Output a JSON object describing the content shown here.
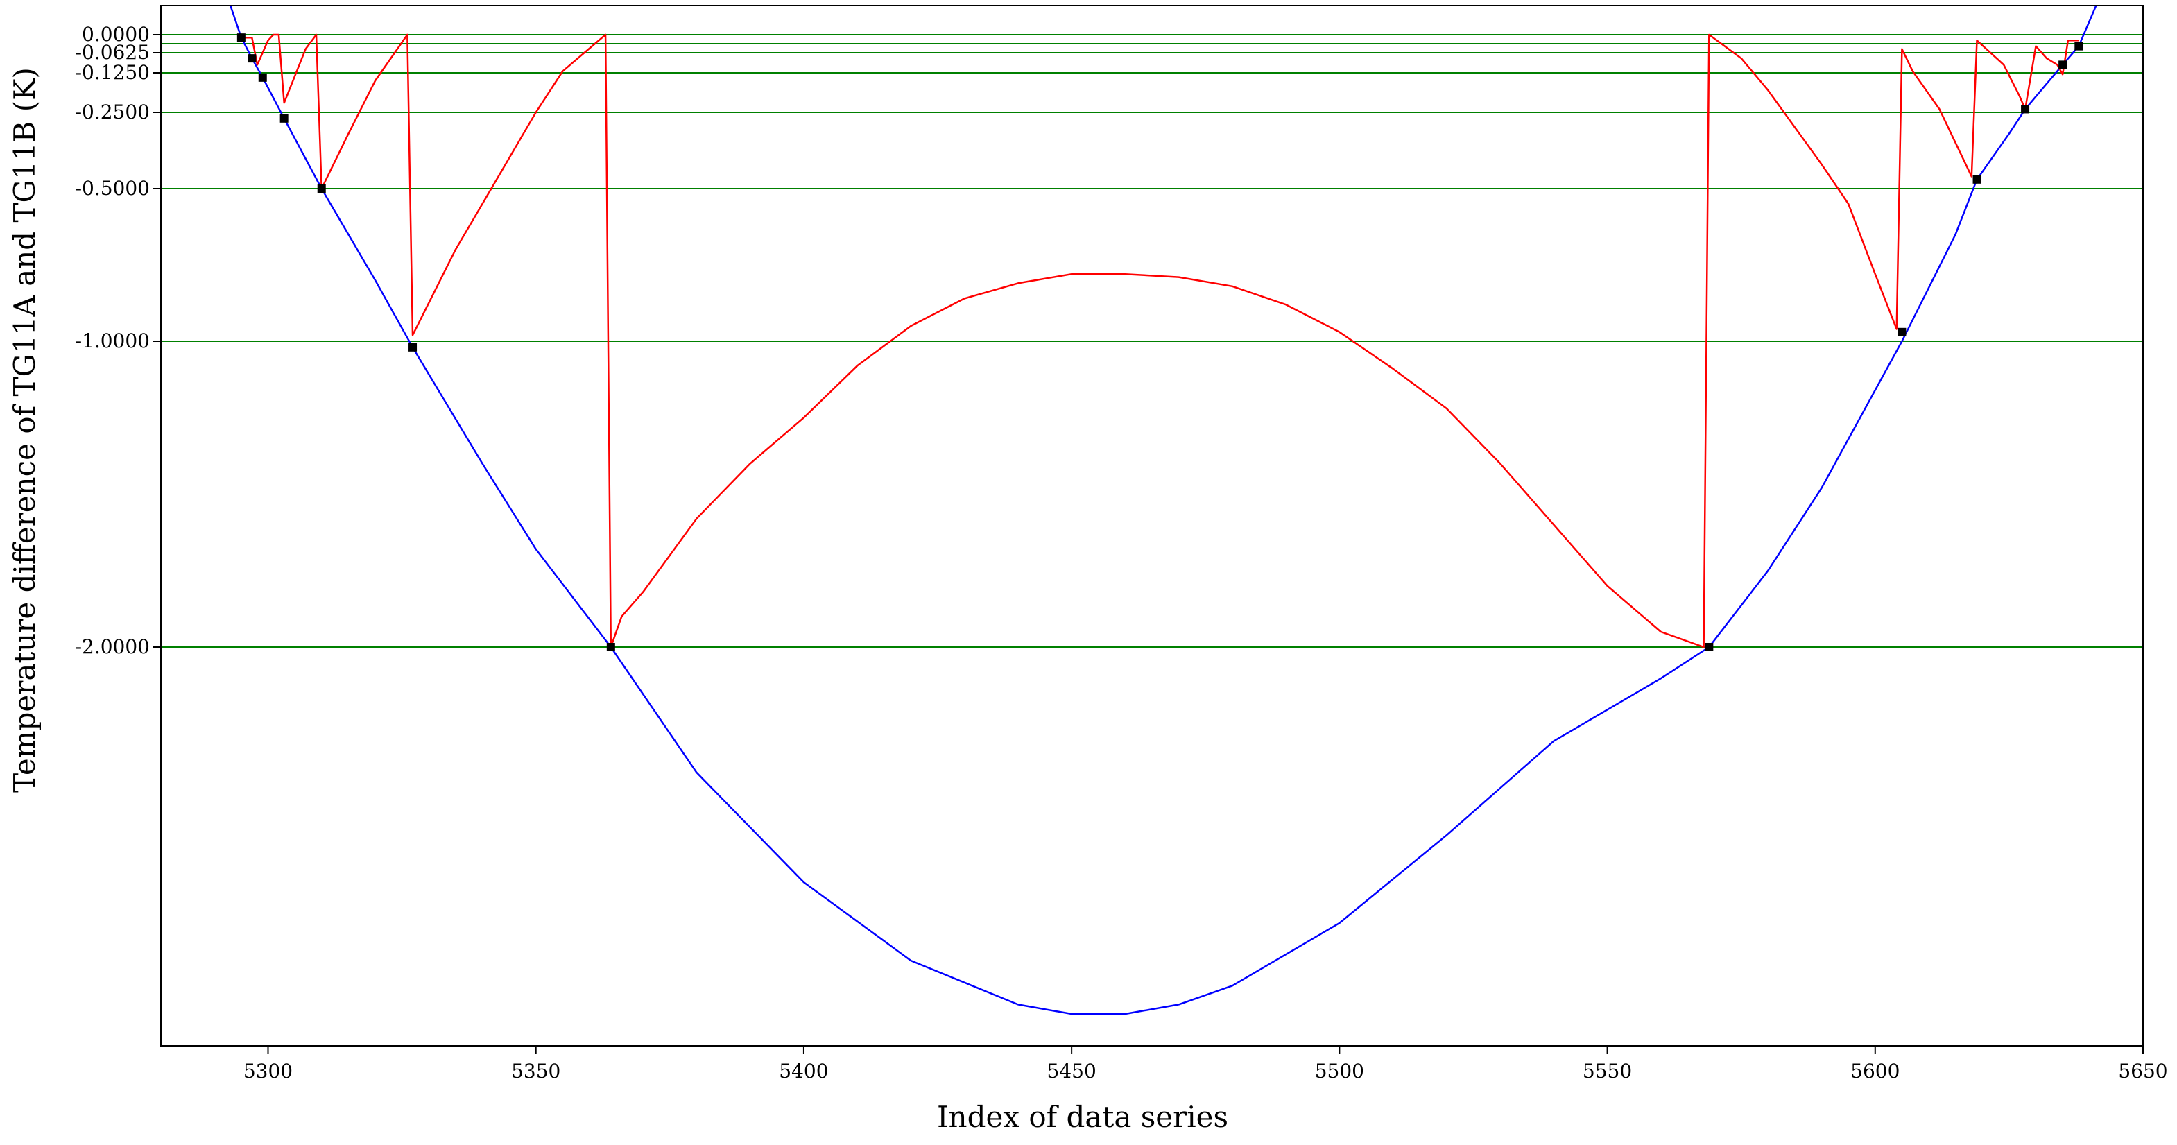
{
  "chart_data": {
    "type": "line",
    "title": "",
    "xlabel": "Index of data series",
    "ylabel": "Temperature difference of TG11A and TG11B (K)",
    "xlim": [
      5280,
      5650
    ],
    "ylim": [
      -3.3,
      0.1
    ],
    "scale": "y axis uses a non-uniform (log-like) scale matching tick positions",
    "grid": false,
    "legend": "none",
    "x_ticks": [
      5300,
      5350,
      5400,
      5450,
      5500,
      5550,
      5600,
      5650
    ],
    "x_tick_labels": [
      "5300",
      "5350",
      "5400",
      "5450",
      "5500",
      "5550",
      "5600",
      "5650"
    ],
    "y_ticks": [
      0,
      -0.0625,
      -0.125,
      -0.25,
      -0.5,
      -1.0,
      -2.0
    ],
    "y_tick_labels": [
      "0.0000",
      "-0.0625",
      "-0.1250",
      "-0.2500",
      "-0.5000",
      "-1.0000",
      "-2.0000"
    ],
    "threshold_lines": [
      0,
      -0.03125,
      -0.0625,
      -0.125,
      -0.25,
      -0.5,
      -1.0,
      -2.0
    ],
    "colors": {
      "blue": "#0000ff",
      "red": "#ff0000",
      "green": "#008000",
      "marker": "#000000"
    },
    "series": [
      {
        "color": "#0000ff",
        "x": [
          5290,
          5295,
          5297,
          5299,
          5303,
          5310,
          5320,
          5327,
          5340,
          5350,
          5364,
          5380,
          5400,
          5420,
          5440,
          5450,
          5460,
          5470,
          5480,
          5500,
          5520,
          5540,
          5560,
          5569,
          5580,
          5590,
          5605,
          5615,
          5619,
          5625,
          5628,
          5635,
          5638,
          5645
        ],
        "y": [
          0.1,
          -0.01,
          -0.08,
          -0.14,
          -0.27,
          -0.5,
          -0.8,
          -1.02,
          -1.4,
          -1.68,
          -2.0,
          -2.4,
          -2.75,
          -3.0,
          -3.14,
          -3.17,
          -3.17,
          -3.14,
          -3.08,
          -2.88,
          -2.6,
          -2.3,
          -2.1,
          -2.0,
          -1.75,
          -1.48,
          -1.0,
          -0.65,
          -0.47,
          -0.32,
          -0.24,
          -0.1,
          -0.04,
          0.1
        ]
      },
      {
        "color": "#ff0000",
        "x": [
          5295,
          5297,
          5298,
          5300,
          5301,
          5302,
          5303,
          5307,
          5309,
          5310,
          5315,
          5320,
          5326,
          5327,
          5335,
          5340,
          5345,
          5350,
          5355,
          5363,
          5364,
          5366,
          5370,
          5380,
          5390,
          5400,
          5410,
          5420,
          5430,
          5440,
          5450,
          5460,
          5470,
          5480,
          5490,
          5500,
          5510,
          5520,
          5530,
          5540,
          5550,
          5560,
          5568,
          5569,
          5575,
          5580,
          5590,
          5595,
          5600,
          5604,
          5605,
          5607,
          5612,
          5618,
          5619,
          5624,
          5627,
          5628,
          5630,
          5632,
          5634,
          5635,
          5636,
          5638
        ],
        "y": [
          -0.01,
          -0.01,
          -0.1,
          -0.02,
          0.0,
          0.0,
          -0.22,
          -0.05,
          0.0,
          -0.5,
          -0.32,
          -0.15,
          0.0,
          -0.98,
          -0.7,
          -0.55,
          -0.4,
          -0.25,
          -0.12,
          0.0,
          -2.0,
          -1.9,
          -1.82,
          -1.58,
          -1.4,
          -1.25,
          -1.08,
          -0.95,
          -0.86,
          -0.81,
          -0.78,
          -0.78,
          -0.79,
          -0.82,
          -0.88,
          -0.97,
          -1.09,
          -1.22,
          -1.4,
          -1.6,
          -1.8,
          -1.95,
          -2.0,
          0.0,
          -0.08,
          -0.18,
          -0.42,
          -0.55,
          -0.78,
          -0.96,
          -0.05,
          -0.12,
          -0.24,
          -0.46,
          -0.02,
          -0.1,
          -0.2,
          -0.24,
          -0.04,
          -0.08,
          -0.1,
          -0.13,
          -0.02,
          -0.02
        ]
      }
    ],
    "markers": {
      "color": "#000000",
      "x": [
        5295,
        5297,
        5299,
        5303,
        5310,
        5327,
        5364,
        5569,
        5605,
        5619,
        5628,
        5635,
        5638
      ],
      "y": [
        -0.01,
        -0.08,
        -0.14,
        -0.27,
        -0.5,
        -1.02,
        -2.0,
        -2.0,
        -0.97,
        -0.47,
        -0.24,
        -0.1,
        -0.04
      ]
    }
  }
}
